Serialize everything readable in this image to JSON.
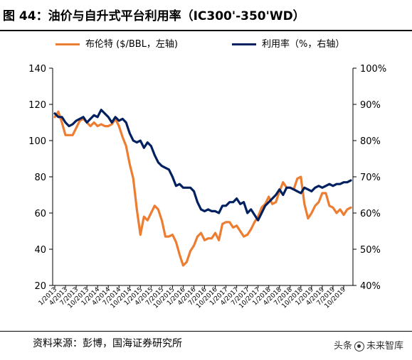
{
  "title": "图 44：油价与自升式平台利用率（IC300'-350'WD）",
  "source": "资料来源：彭博，国海证券研究所",
  "watermark": {
    "prefix": "头条",
    "suffix": "未来智库",
    "icon": "logo-icon"
  },
  "colors": {
    "brent": "#ED7D31",
    "utilization": "#002060",
    "axis": "#000000"
  },
  "chart_data": {
    "type": "line",
    "title": "",
    "xlabel": "",
    "ylabel": "",
    "y_left": {
      "min": 20,
      "max": 140,
      "step": 20,
      "ticks": [
        "20",
        "40",
        "60",
        "80",
        "100",
        "120",
        "140"
      ]
    },
    "y_right": {
      "min": 40,
      "max": 100,
      "step": 10,
      "ticks": [
        "40%",
        "50%",
        "60%",
        "70%",
        "80%",
        "90%",
        "100%"
      ]
    },
    "x_ticks": [
      "1/2013",
      "4/2013",
      "7/2013",
      "10/2013",
      "1/2014",
      "4/2014",
      "7/2014",
      "10/2014",
      "1/2015",
      "4/2015",
      "7/2015",
      "10/2015",
      "1/2016",
      "4/2016",
      "7/2016",
      "10/2016",
      "1/2017",
      "4/2017",
      "7/2017",
      "10/2017",
      "1/2018",
      "4/2018",
      "7/2018",
      "10/2018",
      "1/2019",
      "4/2019",
      "7/2019",
      "10/2019"
    ],
    "legend_position": "top",
    "grid": false,
    "series": [
      {
        "name": "布伦特 ($/BBL，左轴)",
        "axis": "left",
        "x": [
          "1/2013",
          "2/2013",
          "3/2013",
          "4/2013",
          "5/2013",
          "6/2013",
          "7/2013",
          "8/2013",
          "9/2013",
          "10/2013",
          "11/2013",
          "12/2013",
          "1/2014",
          "2/2014",
          "3/2014",
          "4/2014",
          "5/2014",
          "6/2014",
          "7/2014",
          "8/2014",
          "9/2014",
          "10/2014",
          "11/2014",
          "12/2014",
          "1/2015",
          "2/2015",
          "3/2015",
          "4/2015",
          "5/2015",
          "6/2015",
          "7/2015",
          "8/2015",
          "9/2015",
          "10/2015",
          "11/2015",
          "12/2015",
          "1/2016",
          "2/2016",
          "3/2016",
          "4/2016",
          "5/2016",
          "6/2016",
          "7/2016",
          "8/2016",
          "9/2016",
          "10/2016",
          "11/2016",
          "12/2016",
          "1/2017",
          "2/2017",
          "3/2017",
          "4/2017",
          "5/2017",
          "6/2017",
          "7/2017",
          "8/2017",
          "9/2017",
          "10/2017",
          "11/2017",
          "12/2017",
          "1/2018",
          "2/2018",
          "3/2018",
          "4/2018",
          "5/2018",
          "6/2018",
          "7/2018",
          "8/2018",
          "9/2018",
          "10/2018",
          "11/2018",
          "12/2018",
          "1/2019",
          "2/2019",
          "3/2019",
          "4/2019",
          "5/2019",
          "6/2019",
          "7/2019",
          "8/2019",
          "9/2019",
          "10/2019",
          "11/2019",
          "12/2019"
        ],
        "values": [
          113,
          116,
          110,
          103,
          103,
          103,
          107,
          111,
          112,
          110,
          108,
          110,
          108,
          109,
          108,
          108,
          109,
          112,
          108,
          102,
          97,
          87,
          79,
          62,
          48,
          58,
          56,
          60,
          64,
          62,
          56,
          47,
          47,
          48,
          44,
          37,
          31,
          33,
          39,
          42,
          47,
          49,
          45,
          46,
          46,
          49,
          45,
          54,
          55,
          55,
          52,
          53,
          50,
          47,
          48,
          51,
          55,
          58,
          63,
          65,
          69,
          65,
          66,
          72,
          77,
          74,
          74,
          73,
          79,
          80,
          65,
          57,
          60,
          64,
          66,
          71,
          71,
          64,
          63,
          60,
          62,
          59,
          62,
          63
        ]
      },
      {
        "name": "利用率（%，右轴）",
        "axis": "right",
        "x": [
          "1/2013",
          "2/2013",
          "3/2013",
          "4/2013",
          "5/2013",
          "6/2013",
          "7/2013",
          "8/2013",
          "9/2013",
          "10/2013",
          "11/2013",
          "12/2013",
          "1/2014",
          "2/2014",
          "3/2014",
          "4/2014",
          "5/2014",
          "6/2014",
          "7/2014",
          "8/2014",
          "9/2014",
          "10/2014",
          "11/2014",
          "12/2014",
          "1/2015",
          "2/2015",
          "3/2015",
          "4/2015",
          "5/2015",
          "6/2015",
          "7/2015",
          "8/2015",
          "9/2015",
          "10/2015",
          "11/2015",
          "12/2015",
          "1/2016",
          "2/2016",
          "3/2016",
          "4/2016",
          "5/2016",
          "6/2016",
          "7/2016",
          "8/2016",
          "9/2016",
          "10/2016",
          "11/2016",
          "12/2016",
          "1/2017",
          "2/2017",
          "3/2017",
          "4/2017",
          "5/2017",
          "6/2017",
          "7/2017",
          "8/2017",
          "9/2017",
          "10/2017",
          "11/2017",
          "12/2017",
          "1/2018",
          "2/2018",
          "3/2018",
          "4/2018",
          "5/2018",
          "6/2018",
          "7/2018",
          "8/2018",
          "9/2018",
          "10/2018",
          "11/2018",
          "12/2018",
          "1/2019",
          "2/2019",
          "3/2019",
          "4/2019",
          "5/2019",
          "6/2019",
          "7/2019",
          "8/2019",
          "9/2019",
          "10/2019",
          "11/2019",
          "12/2019"
        ],
        "values": [
          87.5,
          86.5,
          86.5,
          85,
          84,
          84.5,
          85.5,
          86,
          86.5,
          85,
          86,
          87,
          86.5,
          88.5,
          87.5,
          86.5,
          85,
          86.5,
          85.5,
          86,
          85,
          82,
          80,
          79.5,
          80,
          78,
          79.5,
          78.5,
          76,
          74,
          73,
          72.5,
          72,
          70,
          67.5,
          68,
          67,
          67,
          67,
          66,
          63,
          61,
          60.5,
          61,
          60.5,
          60.5,
          60,
          62,
          62,
          63,
          63,
          64,
          62.5,
          63,
          60,
          61,
          59.5,
          58,
          60,
          62,
          63,
          64,
          65,
          66.5,
          65,
          67,
          67,
          66.5,
          66,
          65.5,
          67,
          66.5,
          66,
          67,
          67.5,
          67,
          67.5,
          68,
          67.5,
          68,
          68,
          68.5,
          68.5,
          69
        ]
      }
    ]
  }
}
